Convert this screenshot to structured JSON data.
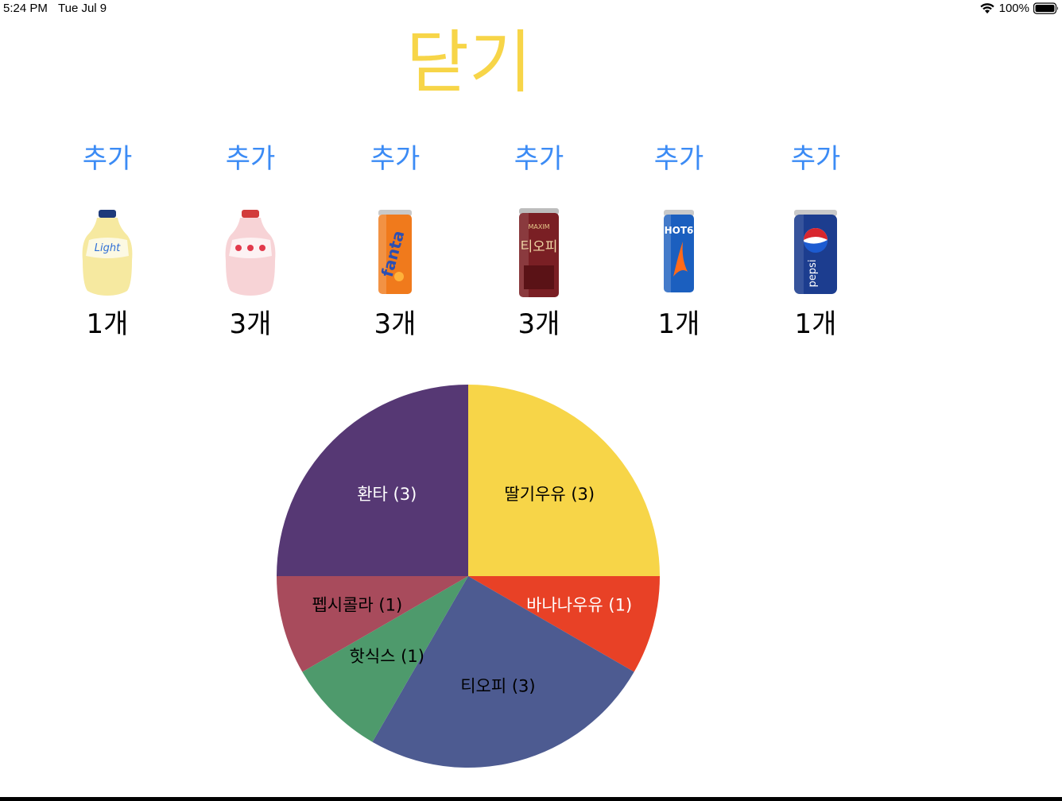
{
  "status_bar": {
    "time": "5:24 PM",
    "date": "Tue Jul 9",
    "battery": "100%"
  },
  "close_button": {
    "label": "닫기",
    "color": "#f7d548"
  },
  "products": [
    {
      "add_label": "추가",
      "count_label": "1개",
      "image": "banana-milk-light-bottle"
    },
    {
      "add_label": "추가",
      "count_label": "3개",
      "image": "strawberry-milk-bottle"
    },
    {
      "add_label": "추가",
      "count_label": "3개",
      "image": "fanta-can"
    },
    {
      "add_label": "추가",
      "count_label": "3개",
      "image": "top-coffee-can"
    },
    {
      "add_label": "추가",
      "count_label": "1개",
      "image": "hot6-can"
    },
    {
      "add_label": "추가",
      "count_label": "1개",
      "image": "pepsi-can"
    }
  ],
  "accent_color": "#3b8bf5",
  "chart_data": {
    "type": "pie",
    "slices": [
      {
        "label": "딸기우유 (3)",
        "value": 3,
        "color": "#f7d548",
        "text_color": "#000000"
      },
      {
        "label": "바나나우유 (1)",
        "value": 1,
        "color": "#e84126",
        "text_color": "#ffffff"
      },
      {
        "label": "티오피 (3)",
        "value": 3,
        "color": "#4d5b91",
        "text_color": "#000000"
      },
      {
        "label": "핫식스 (1)",
        "value": 1,
        "color": "#4e9a6c",
        "text_color": "#000000"
      },
      {
        "label": "펩시콜라 (1)",
        "value": 1,
        "color": "#a84b5c",
        "text_color": "#000000"
      },
      {
        "label": "환타 (3)",
        "value": 3,
        "color": "#563874",
        "text_color": "#ffffff"
      }
    ]
  }
}
